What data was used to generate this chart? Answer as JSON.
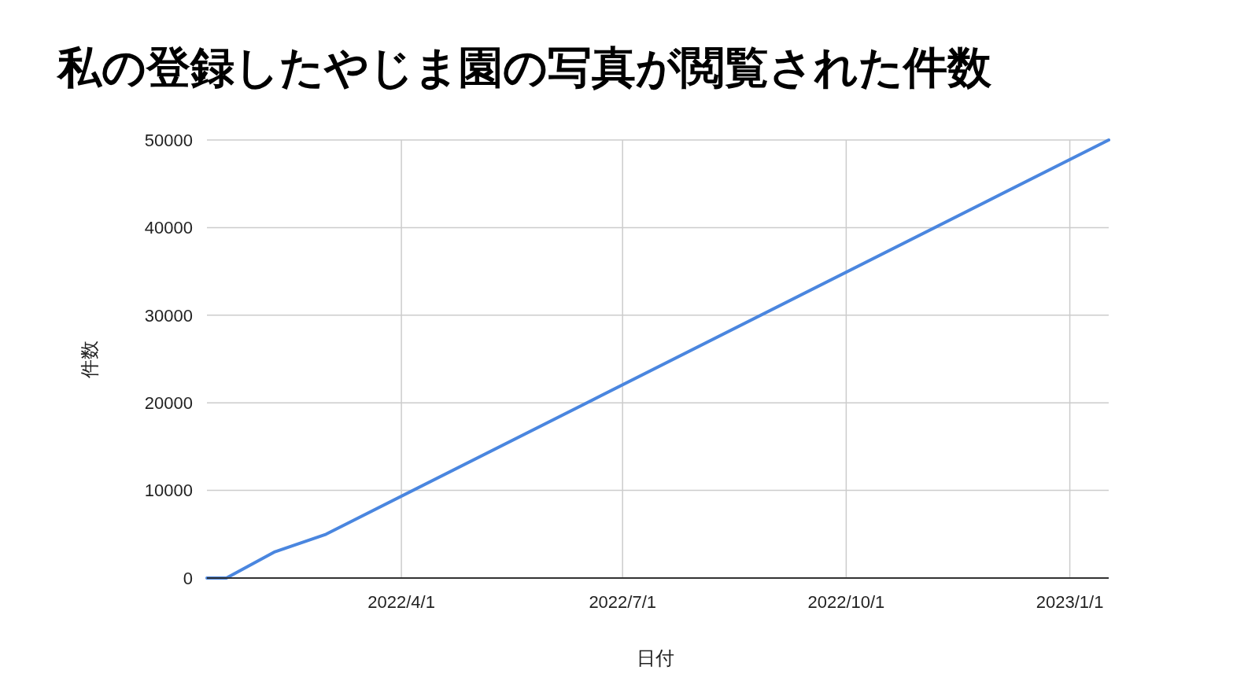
{
  "chart_data": {
    "type": "line",
    "title": "私の登録したやじま園の写真が閲覧された件数",
    "xlabel": "日付",
    "ylabel": "件数",
    "x": [
      "2022-01-11",
      "2022-01-19",
      "2022-02-08",
      "2022-03-01",
      "2023-01-17"
    ],
    "series": [
      {
        "color": "#4a86df",
        "values": [
          0,
          0,
          3000,
          5000,
          50000
        ]
      }
    ],
    "xlim": [
      "2022-01-11",
      "2023-01-17"
    ],
    "xticks": [
      {
        "value": "2022-04-01",
        "label": "2022/4/1"
      },
      {
        "value": "2022-07-01",
        "label": "2022/7/1"
      },
      {
        "value": "2022-10-01",
        "label": "2022/10/1"
      },
      {
        "value": "2023-01-01",
        "label": "2023/1/1"
      }
    ],
    "ylim": [
      0,
      50000
    ],
    "yticks": [
      0,
      10000,
      20000,
      30000,
      40000,
      50000
    ],
    "grid": true,
    "marker": "none",
    "line_style": "solid"
  }
}
